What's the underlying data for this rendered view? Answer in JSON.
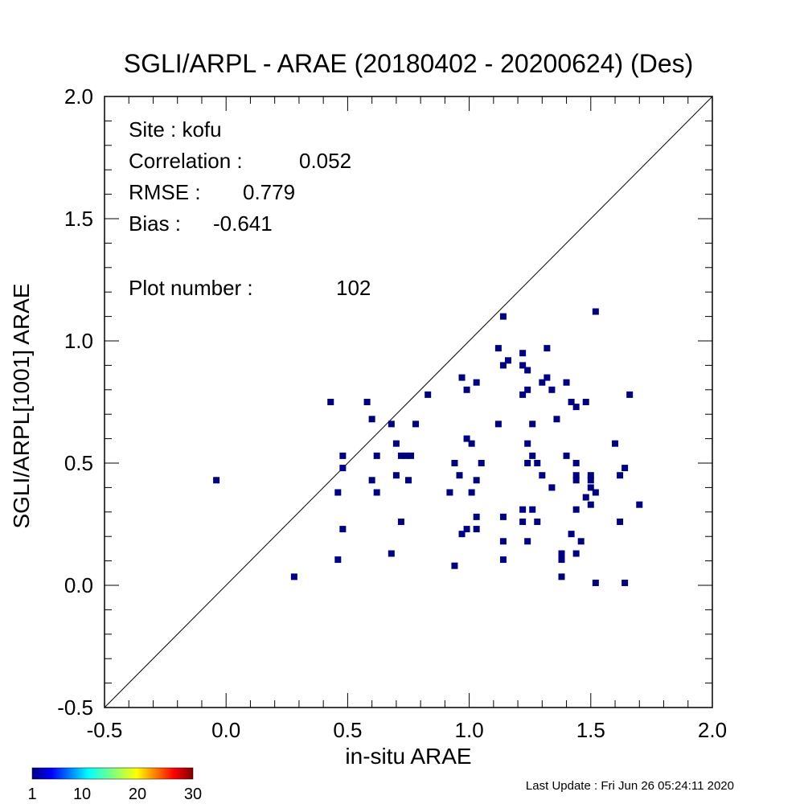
{
  "chart_data": {
    "type": "scatter",
    "title": "SGLI/ARPL - ARAE (20180402 - 20200624) (Des)",
    "xlabel": "in-situ ARAE",
    "ylabel": "SGLI/ARPL[1001]    ARAE",
    "xlim": [
      -0.5,
      2.0
    ],
    "ylim": [
      -0.5,
      2.0
    ],
    "xticks": [
      "-0.5",
      "0.0",
      "0.5",
      "1.0",
      "1.5",
      "2.0"
    ],
    "yticks": [
      "-0.5",
      "0.0",
      "0.5",
      "1.0",
      "1.5",
      "2.0"
    ],
    "xtick_values": [
      -0.5,
      0.0,
      0.5,
      1.0,
      1.5,
      2.0
    ],
    "ytick_values": [
      -0.5,
      0.0,
      0.5,
      1.0,
      1.5,
      2.0
    ],
    "reference_line": "1:1",
    "grid": false,
    "marker_color": "#00007f",
    "stats": {
      "site": "Site : kofu",
      "correlation_label": "Correlation :",
      "correlation_value": "0.052",
      "rmse_label": "RMSE :",
      "rmse_value": "0.779",
      "bias_label": "Bias :",
      "bias_value": "-0.641",
      "plot_number_label": "Plot number :",
      "plot_number_value": "102"
    },
    "colorbar": {
      "ticks": [
        "1",
        "10",
        "20",
        "30"
      ],
      "tick_values": [
        1,
        10,
        20,
        30
      ],
      "range": [
        1,
        30
      ]
    },
    "points": [
      [
        -0.04,
        0.43
      ],
      [
        0.28,
        0.035
      ],
      [
        0.43,
        0.75
      ],
      [
        0.46,
        0.38
      ],
      [
        0.46,
        0.105
      ],
      [
        0.48,
        0.53
      ],
      [
        0.48,
        0.48
      ],
      [
        0.48,
        0.23
      ],
      [
        0.58,
        0.75
      ],
      [
        0.6,
        0.68
      ],
      [
        0.6,
        0.43
      ],
      [
        0.62,
        0.53
      ],
      [
        0.62,
        0.38
      ],
      [
        0.68,
        0.66
      ],
      [
        0.68,
        0.13
      ],
      [
        0.7,
        0.58
      ],
      [
        0.7,
        0.45
      ],
      [
        0.72,
        0.53
      ],
      [
        0.72,
        0.26
      ],
      [
        0.74,
        0.53
      ],
      [
        0.75,
        0.43
      ],
      [
        0.76,
        0.53
      ],
      [
        0.78,
        0.66
      ],
      [
        0.83,
        0.78
      ],
      [
        0.92,
        0.38
      ],
      [
        0.94,
        0.5
      ],
      [
        0.94,
        0.08
      ],
      [
        0.96,
        0.45
      ],
      [
        0.97,
        0.85
      ],
      [
        0.97,
        0.21
      ],
      [
        0.99,
        0.8
      ],
      [
        0.99,
        0.6
      ],
      [
        0.99,
        0.23
      ],
      [
        1.01,
        0.58
      ],
      [
        1.01,
        0.38
      ],
      [
        1.03,
        0.83
      ],
      [
        1.03,
        0.43
      ],
      [
        1.03,
        0.28
      ],
      [
        1.03,
        0.23
      ],
      [
        1.05,
        0.5
      ],
      [
        1.12,
        0.97
      ],
      [
        1.12,
        0.66
      ],
      [
        1.14,
        1.1
      ],
      [
        1.14,
        0.9
      ],
      [
        1.14,
        0.28
      ],
      [
        1.14,
        0.18
      ],
      [
        1.14,
        0.105
      ],
      [
        1.16,
        0.92
      ],
      [
        1.22,
        0.95
      ],
      [
        1.22,
        0.9
      ],
      [
        1.22,
        0.78
      ],
      [
        1.22,
        0.31
      ],
      [
        1.22,
        0.26
      ],
      [
        1.24,
        0.88
      ],
      [
        1.24,
        0.8
      ],
      [
        1.24,
        0.58
      ],
      [
        1.24,
        0.5
      ],
      [
        1.24,
        0.18
      ],
      [
        1.26,
        0.66
      ],
      [
        1.26,
        0.53
      ],
      [
        1.26,
        0.31
      ],
      [
        1.28,
        0.5
      ],
      [
        1.28,
        0.26
      ],
      [
        1.3,
        0.83
      ],
      [
        1.3,
        0.45
      ],
      [
        1.32,
        0.85
      ],
      [
        1.32,
        0.97
      ],
      [
        1.34,
        0.8
      ],
      [
        1.34,
        0.4
      ],
      [
        1.36,
        0.68
      ],
      [
        1.38,
        0.13
      ],
      [
        1.38,
        0.105
      ],
      [
        1.38,
        0.035
      ],
      [
        1.4,
        0.83
      ],
      [
        1.4,
        0.53
      ],
      [
        1.42,
        0.75
      ],
      [
        1.42,
        0.21
      ],
      [
        1.44,
        0.73
      ],
      [
        1.44,
        0.5
      ],
      [
        1.44,
        0.45
      ],
      [
        1.44,
        0.43
      ],
      [
        1.44,
        0.31
      ],
      [
        1.44,
        0.13
      ],
      [
        1.46,
        0.18
      ],
      [
        1.48,
        0.75
      ],
      [
        1.48,
        0.36
      ],
      [
        1.5,
        0.45
      ],
      [
        1.5,
        0.43
      ],
      [
        1.5,
        0.4
      ],
      [
        1.5,
        0.33
      ],
      [
        1.52,
        0.38
      ],
      [
        1.52,
        1.12
      ],
      [
        1.52,
        0.01
      ],
      [
        1.6,
        0.58
      ],
      [
        1.62,
        0.45
      ],
      [
        1.62,
        0.26
      ],
      [
        1.64,
        0.48
      ],
      [
        1.64,
        0.01
      ],
      [
        1.66,
        0.78
      ],
      [
        1.7,
        0.33
      ]
    ]
  },
  "footer": {
    "last_update": "Last Update : Fri Jun 26 05:24:11 2020"
  }
}
